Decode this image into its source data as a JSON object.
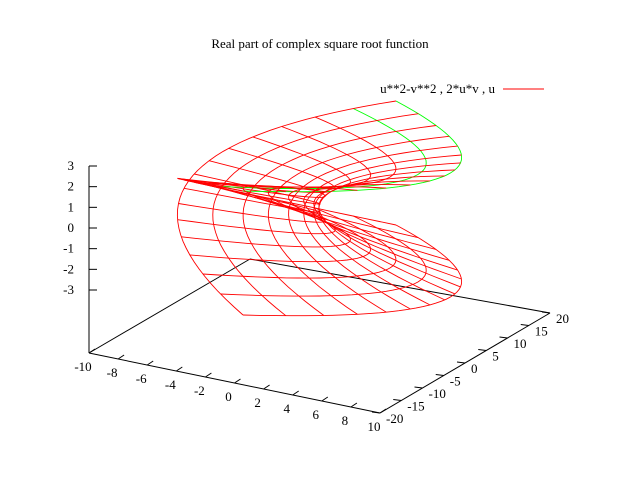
{
  "chart_data": {
    "type": "surface",
    "title": "Real part of complex square root function",
    "legend": {
      "label": "u**2-v**2 , 2*u*v , u",
      "placement": "top-right"
    },
    "parametric": {
      "x": "u**2-v**2",
      "y": "2*u*v",
      "z": "u",
      "u_range": [
        -3,
        3
      ],
      "v_range": [
        -3,
        3
      ]
    },
    "x_axis": {
      "range": [
        -10,
        10
      ],
      "ticks": [
        "-10",
        "-8",
        "-6",
        "-4",
        "-2",
        "0",
        "2",
        "4",
        "6",
        "8",
        "10"
      ]
    },
    "y_axis": {
      "range": [
        -20,
        20
      ],
      "ticks": [
        "-20",
        "-15",
        "-10",
        "-5",
        "0",
        "5",
        "10",
        "15",
        "20"
      ]
    },
    "z_axis": {
      "range": [
        -3,
        3
      ],
      "ticks": [
        "3",
        "2",
        "1",
        "0",
        "-1",
        "-2",
        "-3"
      ]
    },
    "colors": {
      "surface_top": "#ff0000",
      "surface_underside": "#00ff00",
      "axes": "#000000"
    }
  }
}
